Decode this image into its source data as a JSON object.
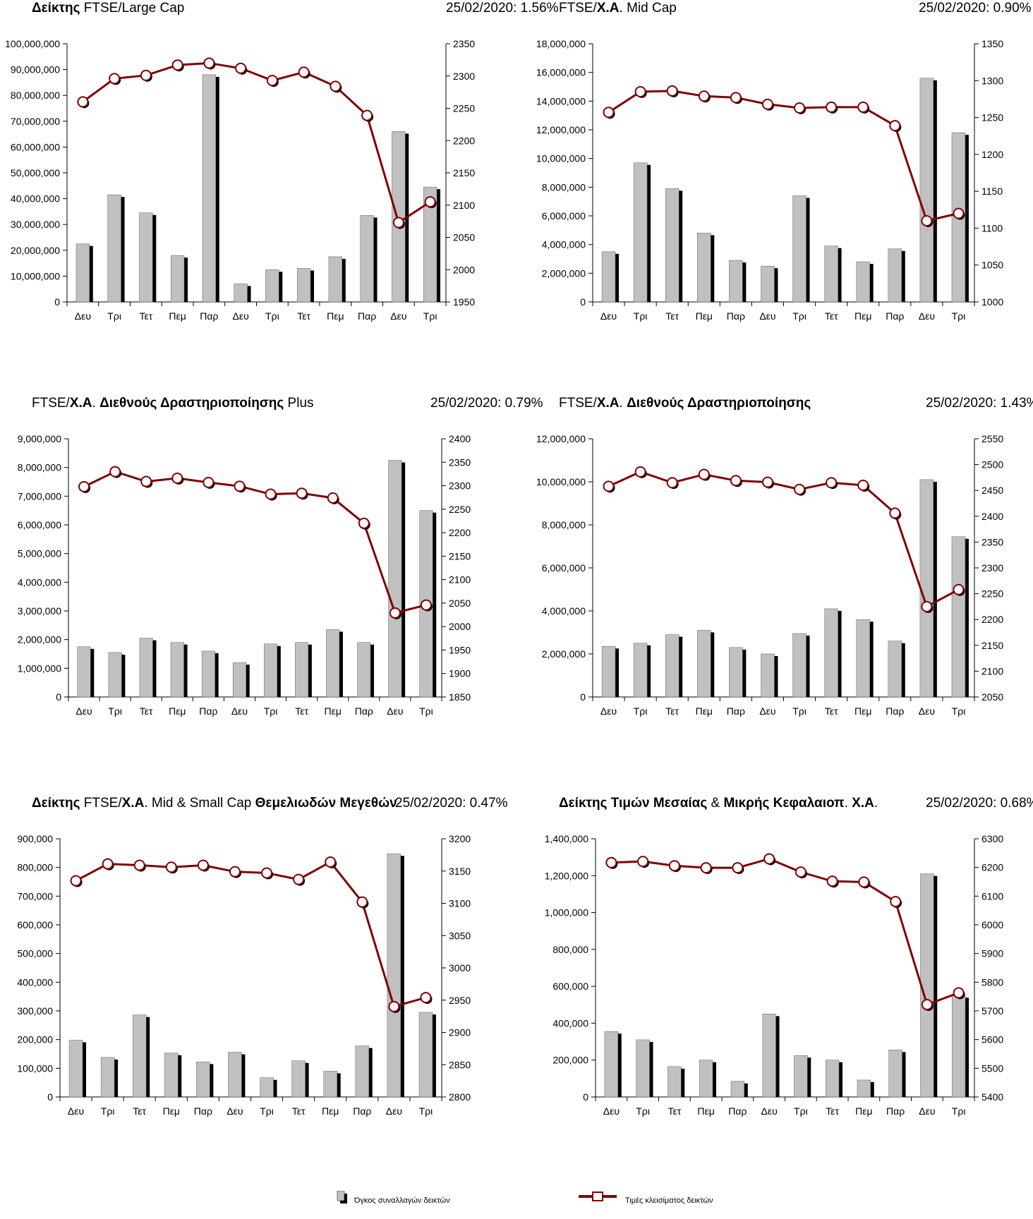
{
  "chart_data": [
    {
      "type": "bar",
      "title_parts": [
        {
          "t": "Δείκτης",
          "b": true
        },
        {
          "t": " FTSE/Large Cap",
          "b": false
        }
      ],
      "date_label": "25/02/2020: 1.56%",
      "categories": [
        "Δευ",
        "Τρι",
        "Τετ",
        "Πεμ",
        "Παρ",
        "Δευ",
        "Τρι",
        "Τετ",
        "Πεμ",
        "Παρ",
        "Δευ",
        "Τρι"
      ],
      "y_left": {
        "min": 0,
        "max": 100000000,
        "step": 10000000,
        "ticks": [
          "0",
          "10,000,000",
          "20,000,000",
          "30,000,000",
          "40,000,000",
          "50,000,000",
          "60,000,000",
          "70,000,000",
          "80,000,000",
          "90,000,000",
          "100,000,000"
        ]
      },
      "y_right": {
        "min": 1950,
        "max": 2350,
        "step": 50,
        "ticks": [
          "1950",
          "2000",
          "2050",
          "2100",
          "2150",
          "2200",
          "2250",
          "2300",
          "2350"
        ]
      },
      "series": [
        {
          "name": "Όγκος συναλλαγών δεικτών",
          "axis": "left",
          "values": [
            22500000,
            41500000,
            34500000,
            18000000,
            88000000,
            7000000,
            12500000,
            13000000,
            17500000,
            33500000,
            66000000,
            44500000
          ]
        },
        {
          "name": "Τιμές κλεισίματος δεικτών",
          "axis": "right",
          "values": [
            2260,
            2296,
            2301,
            2317,
            2320,
            2312,
            2293,
            2306,
            2284,
            2239,
            2073,
            2105
          ]
        }
      ]
    },
    {
      "type": "bar",
      "title_parts": [
        {
          "t": "FTSE/",
          "b": false
        },
        {
          "t": "Χ.Α",
          "b": true
        },
        {
          "t": ". Mid Cap",
          "b": false
        }
      ],
      "date_label": "25/02/2020: 0.90%",
      "categories": [
        "Δευ",
        "Τρι",
        "Τετ",
        "Πεμ",
        "Παρ",
        "Δευ",
        "Τρι",
        "Τετ",
        "Πεμ",
        "Παρ",
        "Δευ",
        "Τρι"
      ],
      "y_left": {
        "min": 0,
        "max": 18000000,
        "step": 2000000,
        "ticks": [
          "0",
          "2,000,000",
          "4,000,000",
          "6,000,000",
          "8,000,000",
          "10,000,000",
          "12,000,000",
          "14,000,000",
          "16,000,000",
          "18,000,000"
        ]
      },
      "y_right": {
        "min": 1000,
        "max": 1350,
        "step": 50,
        "ticks": [
          "1000",
          "1050",
          "1100",
          "1150",
          "1200",
          "1250",
          "1300",
          "1350"
        ]
      },
      "series": [
        {
          "name": "Όγκος συναλλαγών δεικτών",
          "axis": "left",
          "values": [
            3500000,
            9700000,
            7900000,
            4800000,
            2900000,
            2500000,
            7400000,
            3900000,
            2800000,
            3700000,
            15600000,
            11800000
          ]
        },
        {
          "name": "Τιμές κλεισίματος δεικτών",
          "axis": "right",
          "values": [
            1257,
            1285,
            1286,
            1279,
            1277,
            1268,
            1263,
            1264,
            1264,
            1239,
            1110,
            1120
          ]
        }
      ]
    },
    {
      "type": "bar",
      "title_parts": [
        {
          "t": "FTSE/",
          "b": false
        },
        {
          "t": "Χ.Α",
          "b": true
        },
        {
          "t": ". ",
          "b": false
        },
        {
          "t": "Διεθνούς Δραστηριοποίησης",
          "b": true
        },
        {
          "t": " Plus",
          "b": false
        }
      ],
      "date_label": "25/02/2020: 0.79%",
      "categories": [
        "Δευ",
        "Τρι",
        "Τετ",
        "Πεμ",
        "Παρ",
        "Δευ",
        "Τρι",
        "Τετ",
        "Πεμ",
        "Παρ",
        "Δευ",
        "Τρι"
      ],
      "y_left": {
        "min": 0,
        "max": 9000000,
        "step": 1000000,
        "ticks": [
          "0",
          "1,000,000",
          "2,000,000",
          "3,000,000",
          "4,000,000",
          "5,000,000",
          "6,000,000",
          "7,000,000",
          "8,000,000",
          "9,000,000"
        ]
      },
      "y_right": {
        "min": 1850,
        "max": 2400,
        "step": 50,
        "ticks": [
          "1850",
          "1900",
          "1950",
          "2000",
          "2050",
          "2100",
          "2150",
          "2200",
          "2250",
          "2300",
          "2350",
          "2400"
        ]
      },
      "series": [
        {
          "name": "Όγκος συναλλαγών δεικτών",
          "axis": "left",
          "values": [
            1750000,
            1550000,
            2050000,
            1900000,
            1600000,
            1200000,
            1850000,
            1900000,
            2350000,
            1900000,
            8250000,
            6500000
          ]
        },
        {
          "name": "Τιμές κλεισίματος δεικτών",
          "axis": "right",
          "values": [
            2298,
            2330,
            2309,
            2316,
            2307,
            2299,
            2282,
            2284,
            2274,
            2220,
            2029,
            2046
          ]
        }
      ]
    },
    {
      "type": "bar",
      "title_parts": [
        {
          "t": "FTSE/",
          "b": false
        },
        {
          "t": "Χ.Α",
          "b": true
        },
        {
          "t": ". ",
          "b": false
        },
        {
          "t": "Διεθνούς Δραστηριοποίησης",
          "b": true
        }
      ],
      "date_label": "25/02/2020: 1.43%",
      "categories": [
        "Δευ",
        "Τρι",
        "Τετ",
        "Πεμ",
        "Παρ",
        "Δευ",
        "Τρι",
        "Τετ",
        "Πεμ",
        "Παρ",
        "Δευ",
        "Τρι"
      ],
      "y_left": {
        "min": 0,
        "max": 12000000,
        "step": 2000000,
        "ticks": [
          "0",
          "2,000,000",
          "4,000,000",
          "6,000,000",
          "8,000,000",
          "10,000,000",
          "12,000,000"
        ]
      },
      "y_right": {
        "min": 2050,
        "max": 2550,
        "step": 50,
        "ticks": [
          "2050",
          "2100",
          "2150",
          "2200",
          "2250",
          "2300",
          "2350",
          "2400",
          "2450",
          "2500",
          "2550"
        ]
      },
      "series": [
        {
          "name": "Όγκος συναλλαγών δεικτών",
          "axis": "left",
          "values": [
            2350000,
            2500000,
            2900000,
            3100000,
            2300000,
            2000000,
            2950000,
            4100000,
            3600000,
            2600000,
            10100000,
            7450000
          ]
        },
        {
          "name": "Τιμές κλεισίματος δεικτών",
          "axis": "right",
          "values": [
            2458,
            2486,
            2465,
            2481,
            2469,
            2466,
            2452,
            2465,
            2460,
            2406,
            2225,
            2258
          ]
        }
      ]
    },
    {
      "type": "bar",
      "title_parts": [
        {
          "t": "Δείκτης",
          "b": true
        },
        {
          "t": " FTSE/",
          "b": false
        },
        {
          "t": "Χ.Α",
          "b": true
        },
        {
          "t": ". Mid & Small Cap ",
          "b": false
        },
        {
          "t": "Θεμελιωδών Μεγεθών",
          "b": true
        }
      ],
      "date_label": "25/02/2020: 0.47%",
      "categories": [
        "Δευ",
        "Τρι",
        "Τετ",
        "Πεμ",
        "Παρ",
        "Δευ",
        "Τρι",
        "Τετ",
        "Πεμ",
        "Παρ",
        "Δευ",
        "Τρι"
      ],
      "y_left": {
        "min": 0,
        "max": 900000,
        "step": 100000,
        "ticks": [
          "0",
          "100,000",
          "200,000",
          "300,000",
          "400,000",
          "500,000",
          "600,000",
          "700,000",
          "800,000",
          "900,000"
        ]
      },
      "y_right": {
        "min": 2800,
        "max": 3200,
        "step": 50,
        "ticks": [
          "2800",
          "2850",
          "2900",
          "2950",
          "3000",
          "3050",
          "3100",
          "3150",
          "3200"
        ]
      },
      "series": [
        {
          "name": "Όγκος συναλλαγών δεικτών",
          "axis": "left",
          "values": [
            198000,
            138000,
            286000,
            153000,
            122000,
            156000,
            67000,
            126000,
            90000,
            178000,
            848000,
            295000
          ]
        },
        {
          "name": "Τιμές κλεισίματος δεικτών",
          "axis": "right",
          "values": [
            3135,
            3161,
            3159,
            3156,
            3159,
            3149,
            3147,
            3137,
            3164,
            3102,
            2940,
            2954
          ]
        }
      ]
    },
    {
      "type": "bar",
      "title_parts": [
        {
          "t": "Δείκτης Τιμών Μεσαίας",
          "b": true
        },
        {
          "t": " & ",
          "b": false
        },
        {
          "t": "Μικρής Κεφαλαιοπ",
          "b": true
        },
        {
          "t": ".  ",
          "b": false
        },
        {
          "t": "Χ.Α",
          "b": true
        },
        {
          "t": ".",
          "b": false
        }
      ],
      "date_label": "25/02/2020: 0.68%",
      "categories": [
        "Δευ",
        "Τρι",
        "Τετ",
        "Πεμ",
        "Παρ",
        "Δευ",
        "Τρι",
        "Τετ",
        "Πεμ",
        "Παρ",
        "Δευ",
        "Τρι"
      ],
      "y_left": {
        "min": 0,
        "max": 1400000,
        "step": 200000,
        "ticks": [
          "0",
          "200,000",
          "400,000",
          "600,000",
          "800,000",
          "1,000,000",
          "1,200,000",
          "1,400,000"
        ]
      },
      "y_right": {
        "min": 5400,
        "max": 6300,
        "step": 100,
        "ticks": [
          "5400",
          "5500",
          "5600",
          "5700",
          "5800",
          "5900",
          "6000",
          "6100",
          "6200",
          "6300"
        ]
      },
      "series": [
        {
          "name": "Όγκος συναλλαγών δεικτών",
          "axis": "left",
          "values": [
            355000,
            310000,
            165000,
            200000,
            85000,
            450000,
            225000,
            200000,
            92000,
            255000,
            1210000,
            550000
          ]
        },
        {
          "name": "Τιμές κλεισίματος δεικτών",
          "axis": "right",
          "values": [
            6217,
            6221,
            6206,
            6199,
            6199,
            6230,
            6184,
            6152,
            6149,
            6081,
            5722,
            5763
          ]
        }
      ]
    }
  ],
  "legend": {
    "bars_label": "Όγκος συναλλαγών δεικτών",
    "line_label": "Τιμές κλεισίματος δεικτών"
  },
  "colors": {
    "bar_front": "#c0c0c0",
    "bar_shadow": "#000000",
    "line": "#800000",
    "marker_fill": "#ffffff"
  }
}
